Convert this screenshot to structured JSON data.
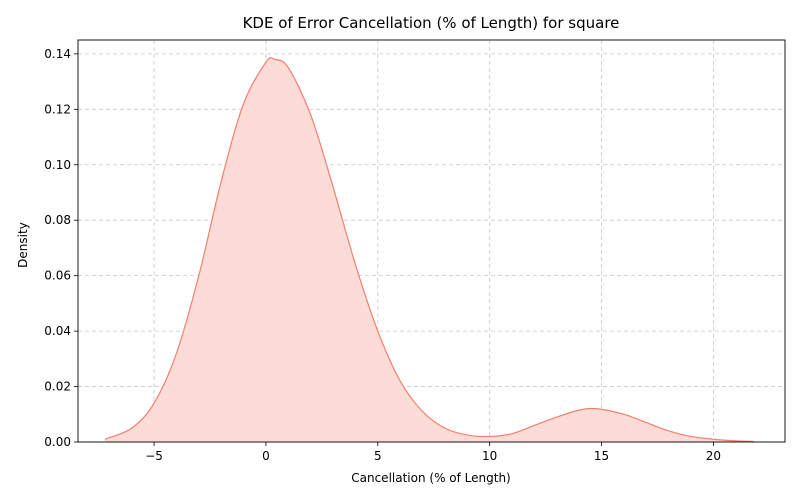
{
  "chart_data": {
    "type": "area",
    "title": "KDE of Error Cancellation (% of Length) for square",
    "xlabel": "Cancellation (% of Length)",
    "ylabel": "Density",
    "xlim": [
      -8.4,
      23.2
    ],
    "ylim": [
      0,
      0.145
    ],
    "xticks": [
      -5,
      0,
      5,
      10,
      15,
      20
    ],
    "xtick_labels": [
      "−5",
      "0",
      "5",
      "10",
      "15",
      "20"
    ],
    "yticks": [
      0.0,
      0.02,
      0.04,
      0.06,
      0.08,
      0.1,
      0.12,
      0.14
    ],
    "ytick_labels": [
      "0.00",
      "0.02",
      "0.04",
      "0.06",
      "0.08",
      "0.10",
      "0.12",
      "0.14"
    ],
    "grid": true,
    "colors": {
      "line": "#f08070",
      "fill": "#fddcd8"
    },
    "series": [
      {
        "x": [
          -7.2,
          -6,
          -5,
          -4,
          -3,
          -2,
          -1,
          0,
          0.4,
          1,
          2,
          3,
          4,
          5,
          6,
          7,
          8,
          9,
          10,
          11,
          12,
          13,
          14,
          14.8,
          16,
          17,
          18,
          19,
          20,
          21,
          21.8
        ],
        "y": [
          0.001,
          0.005,
          0.014,
          0.032,
          0.06,
          0.094,
          0.122,
          0.137,
          0.138,
          0.135,
          0.118,
          0.092,
          0.064,
          0.04,
          0.022,
          0.011,
          0.005,
          0.0025,
          0.002,
          0.003,
          0.006,
          0.009,
          0.0115,
          0.012,
          0.01,
          0.007,
          0.004,
          0.002,
          0.001,
          0.0004,
          0.0002
        ]
      }
    ]
  }
}
